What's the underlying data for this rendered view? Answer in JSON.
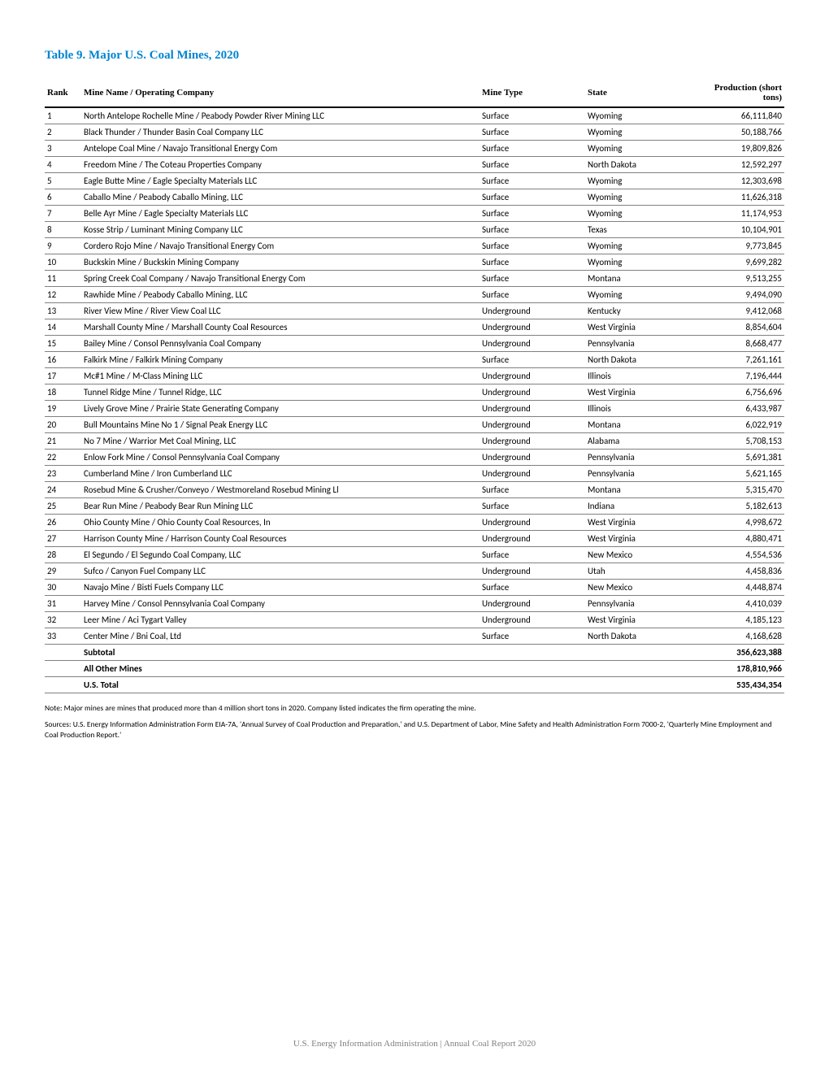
{
  "title": "Table 9.  Major U.S. Coal Mines, 2020",
  "columns": {
    "rank": "Rank",
    "name": "Mine Name / Operating Company",
    "type": "Mine Type",
    "state": "State",
    "production": "Production (short tons)"
  },
  "rows": [
    {
      "rank": "1",
      "name": "North Antelope Rochelle Mine / Peabody Powder River Mining LLC",
      "type": "Surface",
      "state": "Wyoming",
      "production": "66,111,840"
    },
    {
      "rank": "2",
      "name": "Black Thunder / Thunder Basin Coal Company LLC",
      "type": "Surface",
      "state": "Wyoming",
      "production": "50,188,766"
    },
    {
      "rank": "3",
      "name": "Antelope Coal Mine / Navajo Transitional Energy Com",
      "type": "Surface",
      "state": "Wyoming",
      "production": "19,809,826"
    },
    {
      "rank": "4",
      "name": "Freedom Mine / The Coteau Properties Company",
      "type": "Surface",
      "state": "North Dakota",
      "production": "12,592,297"
    },
    {
      "rank": "5",
      "name": "Eagle Butte Mine / Eagle Specialty Materials LLC",
      "type": "Surface",
      "state": "Wyoming",
      "production": "12,303,698"
    },
    {
      "rank": "6",
      "name": "Caballo Mine / Peabody Caballo Mining, LLC",
      "type": "Surface",
      "state": "Wyoming",
      "production": "11,626,318"
    },
    {
      "rank": "7",
      "name": "Belle Ayr Mine / Eagle Specialty Materials LLC",
      "type": "Surface",
      "state": "Wyoming",
      "production": "11,174,953"
    },
    {
      "rank": "8",
      "name": "Kosse Strip / Luminant Mining Company LLC",
      "type": "Surface",
      "state": "Texas",
      "production": "10,104,901"
    },
    {
      "rank": "9",
      "name": "Cordero Rojo Mine / Navajo Transitional Energy Com",
      "type": "Surface",
      "state": "Wyoming",
      "production": "9,773,845"
    },
    {
      "rank": "10",
      "name": "Buckskin Mine / Buckskin Mining Company",
      "type": "Surface",
      "state": "Wyoming",
      "production": "9,699,282"
    },
    {
      "rank": "11",
      "name": "Spring Creek Coal Company / Navajo Transitional Energy Com",
      "type": "Surface",
      "state": "Montana",
      "production": "9,513,255"
    },
    {
      "rank": "12",
      "name": "Rawhide Mine / Peabody Caballo Mining, LLC",
      "type": "Surface",
      "state": "Wyoming",
      "production": "9,494,090"
    },
    {
      "rank": "13",
      "name": "River View Mine / River View Coal LLC",
      "type": "Underground",
      "state": "Kentucky",
      "production": "9,412,068"
    },
    {
      "rank": "14",
      "name": "Marshall County Mine / Marshall County Coal Resources",
      "type": "Underground",
      "state": "West Virginia",
      "production": "8,854,604"
    },
    {
      "rank": "15",
      "name": "Bailey Mine / Consol Pennsylvania Coal Company",
      "type": "Underground",
      "state": "Pennsylvania",
      "production": "8,668,477"
    },
    {
      "rank": "16",
      "name": "Falkirk Mine / Falkirk Mining Company",
      "type": "Surface",
      "state": "North Dakota",
      "production": "7,261,161"
    },
    {
      "rank": "17",
      "name": "Mc#1 Mine / M-Class Mining LLC",
      "type": "Underground",
      "state": "Illinois",
      "production": "7,196,444"
    },
    {
      "rank": "18",
      "name": "Tunnel Ridge Mine / Tunnel Ridge, LLC",
      "type": "Underground",
      "state": "West Virginia",
      "production": "6,756,696"
    },
    {
      "rank": "19",
      "name": "Lively Grove Mine / Prairie State Generating Company",
      "type": "Underground",
      "state": "Illinois",
      "production": "6,433,987"
    },
    {
      "rank": "20",
      "name": "Bull Mountains Mine No 1 / Signal Peak Energy LLC",
      "type": "Underground",
      "state": "Montana",
      "production": "6,022,919"
    },
    {
      "rank": "21",
      "name": "No 7 Mine / Warrior Met Coal Mining, LLC",
      "type": "Underground",
      "state": "Alabama",
      "production": "5,708,153"
    },
    {
      "rank": "22",
      "name": "Enlow Fork Mine / Consol Pennsylvania Coal Company",
      "type": "Underground",
      "state": "Pennsylvania",
      "production": "5,691,381"
    },
    {
      "rank": "23",
      "name": "Cumberland Mine / Iron Cumberland LLC",
      "type": "Underground",
      "state": "Pennsylvania",
      "production": "5,621,165"
    },
    {
      "rank": "24",
      "name": "Rosebud Mine & Crusher/Conveyo / Westmoreland Rosebud Mining Ll",
      "type": "Surface",
      "state": "Montana",
      "production": "5,315,470"
    },
    {
      "rank": "25",
      "name": "Bear Run Mine / Peabody Bear Run Mining LLC",
      "type": "Surface",
      "state": "Indiana",
      "production": "5,182,613"
    },
    {
      "rank": "26",
      "name": "Ohio County Mine / Ohio County Coal Resources, In",
      "type": "Underground",
      "state": "West Virginia",
      "production": "4,998,672"
    },
    {
      "rank": "27",
      "name": "Harrison County Mine / Harrison County Coal Resources",
      "type": "Underground",
      "state": "West Virginia",
      "production": "4,880,471"
    },
    {
      "rank": "28",
      "name": "El Segundo / El Segundo Coal Company, LLC",
      "type": "Surface",
      "state": "New Mexico",
      "production": "4,554,536"
    },
    {
      "rank": "29",
      "name": "Sufco / Canyon Fuel Company LLC",
      "type": "Underground",
      "state": "Utah",
      "production": "4,458,836"
    },
    {
      "rank": "30",
      "name": "Navajo Mine / Bisti Fuels Company LLC",
      "type": "Surface",
      "state": "New Mexico",
      "production": "4,448,874"
    },
    {
      "rank": "31",
      "name": "Harvey Mine / Consol Pennsylvania Coal Company",
      "type": "Underground",
      "state": "Pennsylvania",
      "production": "4,410,039"
    },
    {
      "rank": "32",
      "name": "Leer Mine / Aci Tygart Valley",
      "type": "Underground",
      "state": "West Virginia",
      "production": "4,185,123"
    },
    {
      "rank": "33",
      "name": "Center Mine / Bni Coal, Ltd",
      "type": "Surface",
      "state": "North Dakota",
      "production": "4,168,628"
    }
  ],
  "summary": [
    {
      "label": "Subtotal",
      "value": "356,623,388"
    },
    {
      "label": "All Other Mines",
      "value": "178,810,966"
    },
    {
      "label": "U.S. Total",
      "value": "535,434,354"
    }
  ],
  "note": "Note: Major mines are mines that produced more than 4 million short tons in 2020. Company listed indicates the firm operating the mine.",
  "sources": "Sources: U.S. Energy Information Administration Form EIA-7A, 'Annual Survey of Coal Production and Preparation,' and U.S. Department of Labor, Mine Safety and Health Administration Form 7000-2, 'Quarterly Mine Employment and Coal Production Report.'",
  "footer": "U.S. Energy Information Administration | Annual Coal Report 2020"
}
